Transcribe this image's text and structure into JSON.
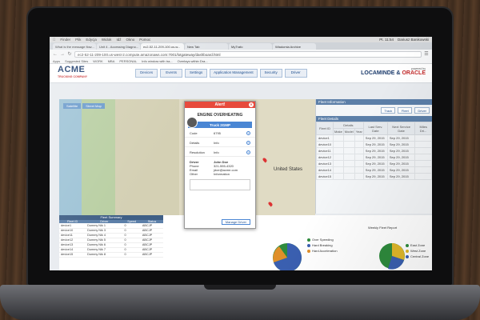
{
  "menubar": {
    "items": [
      "Finder",
      "Plik",
      "Edycja",
      "Widok",
      "Idź",
      "Okno",
      "Pomoc"
    ],
    "clock": "Pt. 11:54",
    "user": "Dariusz Banikowski"
  },
  "browser": {
    "tabs": [
      {
        "label": "What is the message flow...",
        "active": false
      },
      {
        "label": "Unit 4 - Accessing Diagno...",
        "active": false
      },
      {
        "label": "ec2-52-11-209-100.us-w...",
        "active": true
      },
      {
        "label": "New Tab",
        "active": false
      },
      {
        "label": "MyTrafo",
        "active": false
      },
      {
        "label": "Wiadomia Archive",
        "active": false
      }
    ],
    "url": "ec2-52-11-209-100.us-west-2.compute.amazonaws.com:7001/lotgateway/dashboard.html",
    "bookmarks": [
      "Apps",
      "Suggested Sites",
      "WORK",
      "MBA",
      "PERSONAL",
      "Info window with tra...",
      "Overlays within Dra..."
    ]
  },
  "app": {
    "logo": "ACME",
    "logo_sub": "TRUCKING COMPANY",
    "nav": [
      "Devices",
      "Events",
      "Settings",
      "Application Management",
      "Security",
      "Driver"
    ],
    "powered_by": "powered by",
    "brand_a": "LOCAMINDE",
    "brand_b": "ORACLE"
  },
  "map": {
    "buttons": [
      "Satellite",
      "Street Map"
    ],
    "state_label": "United States",
    "filter_label": "FILTER"
  },
  "alert": {
    "header": "Alert!",
    "close_icon": "close-icon",
    "title": "ENGINE OVERHEATING",
    "truck": "Truck 2GMP",
    "rows": [
      {
        "key": "Code",
        "value": "6795"
      },
      {
        "key": "Details",
        "value": "Info"
      },
      {
        "key": "Resolution",
        "value": "Info"
      }
    ],
    "driver_rows": [
      {
        "key": "Driver",
        "value": "John Doe"
      },
      {
        "key": "Phone",
        "value": "321-555-4320"
      },
      {
        "key": "Email",
        "value": "jdoe@acme.com"
      },
      {
        "key": "Other",
        "value": "Information"
      }
    ],
    "manage_button": "Manage Driver"
  },
  "fleet_info": {
    "header": "Fleet Information",
    "buttons": [
      "Track",
      "Fleet",
      "Driver"
    ],
    "details_header": "Fleet Details",
    "columns": [
      "Fleet ID",
      "Make",
      "Model",
      "Year",
      "Last Serv. Date",
      "Next Service Date",
      "Miles Dri..."
    ],
    "details_group": "Details",
    "rows": [
      {
        "id": "device1",
        "last": "Sep 29, 2015",
        "next": "Sep 29, 2015"
      },
      {
        "id": "device10",
        "last": "Sep 29, 2015",
        "next": "Sep 29, 2015"
      },
      {
        "id": "device11",
        "last": "Sep 29, 2015",
        "next": "Sep 29, 2015"
      },
      {
        "id": "device12",
        "last": "Sep 29, 2015",
        "next": "Sep 29, 2015"
      },
      {
        "id": "device13",
        "last": "Sep 29, 2015",
        "next": "Sep 29, 2015"
      },
      {
        "id": "device14",
        "last": "Sep 29, 2015",
        "next": "Sep 29, 2015"
      },
      {
        "id": "device15",
        "last": "Sep 29, 2015",
        "next": "Sep 29, 2015"
      }
    ]
  },
  "fleet_summary": {
    "header": "Fleet Summary",
    "columns": [
      "Fleet ID",
      "Driver",
      "Speed",
      "Status"
    ],
    "rows": [
      {
        "id": "device1",
        "driver": "Dummy Nik 1",
        "speed": "0",
        "status": "ABCJP"
      },
      {
        "id": "device10",
        "driver": "Dummy Nik 3",
        "speed": "0",
        "status": "ABCJP"
      },
      {
        "id": "device11",
        "driver": "Dummy Nik 4",
        "speed": "0",
        "status": "ABCJP"
      },
      {
        "id": "device12",
        "driver": "Dummy Nik 5",
        "speed": "0",
        "status": "ABCJP"
      },
      {
        "id": "device13",
        "driver": "Dummy Nik 6",
        "speed": "0",
        "status": "ABCJP"
      },
      {
        "id": "device14",
        "driver": "Dummy Nik 7",
        "speed": "0",
        "status": "ABCJP"
      },
      {
        "id": "device15",
        "driver": "Dummy Nik 8",
        "speed": "0",
        "status": "ABCJP"
      }
    ]
  },
  "events_legend": [
    {
      "label": "Over Speeding",
      "color": "#2e8b3d"
    },
    {
      "label": "Hard Breaking",
      "color": "#3a5fb0"
    },
    {
      "label": "Hard Acceleration",
      "color": "#e0902a"
    }
  ],
  "weekly_report": {
    "header": "Weekly Fleet Report",
    "legend": [
      {
        "label": "East Zone",
        "color": "#2e8b3d"
      },
      {
        "label": "West Zone",
        "color": "#e0b82a"
      },
      {
        "label": "Central Zone",
        "color": "#3a5fb0"
      }
    ]
  },
  "colors": {
    "alert": "#e74a3c",
    "accent": "#4a86d4",
    "header_blue": "#5c7fa8"
  }
}
